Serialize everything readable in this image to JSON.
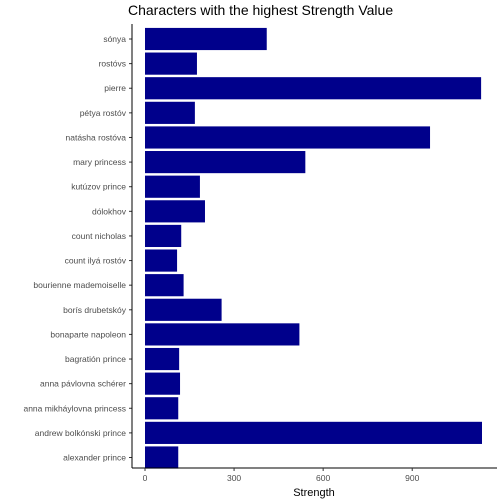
{
  "chart_data": {
    "type": "bar",
    "orientation": "horizontal",
    "title": "Characters with the highest Strength Value",
    "xlabel": "Strength",
    "ylabel": "",
    "categories": [
      "sónya",
      "rostóvs",
      "pierre",
      "pétya rostóv",
      "natásha rostóva",
      "mary princess",
      "kutúzov prince",
      "dólokhov",
      "count nicholas",
      "count ilyá rostóv",
      "bourienne mademoiselle",
      "borís drubetskóy",
      "bonaparte napoleon",
      "bagratión prince",
      "anna pávlovna schérer",
      "anna mikháylovna princess",
      "andrew bolkónski prince",
      "alexander prince"
    ],
    "values": [
      410,
      175,
      1132,
      168,
      960,
      540,
      185,
      202,
      122,
      108,
      130,
      258,
      520,
      115,
      118,
      112,
      1135,
      112
    ],
    "xlim": [
      0,
      1135
    ],
    "xticks": [
      0,
      300,
      600,
      900
    ],
    "bar_color": "#00008B",
    "grid": false,
    "legend": "none"
  }
}
